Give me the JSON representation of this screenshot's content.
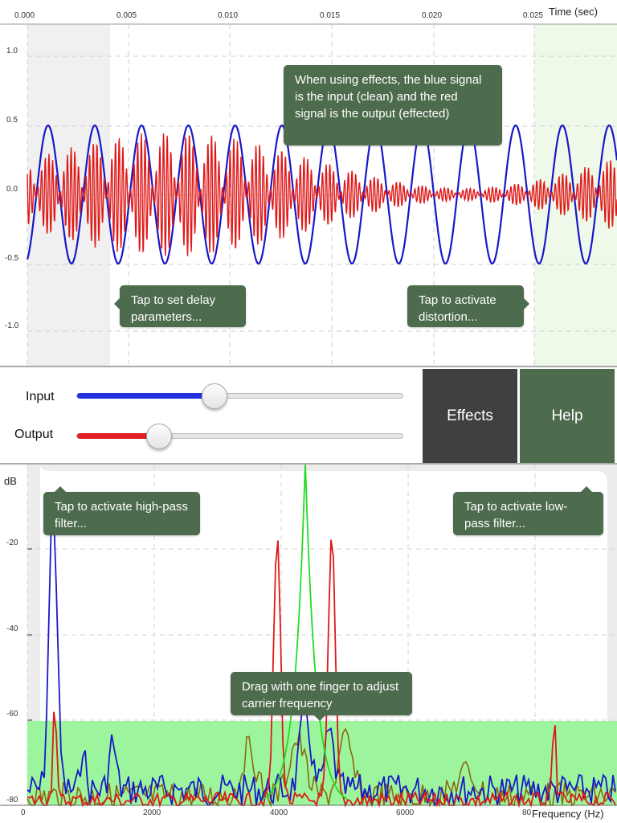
{
  "time_plot": {
    "axis_title": "Time (sec)",
    "x_ticks": [
      "0.000",
      "0.005",
      "0.010",
      "0.015",
      "0.020",
      "0.025"
    ],
    "y_ticks": [
      "1.0",
      "0.5",
      "0.0",
      "-0.5",
      "-1.0"
    ],
    "tooltips": {
      "effects": "When using effects, the blue signal is the input (clean) and the red signal is the output (effected)",
      "delay": "Tap to set delay parameters...",
      "distortion": "Tap to activate distortion..."
    }
  },
  "controls": {
    "input_label": "Input",
    "output_label": "Output",
    "input_level": 0.42,
    "output_level": 0.25,
    "effects_button": "Effects",
    "help_button": "Help",
    "input_color": "#2233dd",
    "output_color": "#e02020"
  },
  "freq_plot": {
    "y_title": "dB",
    "x_title": "Frequency (Hz)",
    "y_ticks": [
      "-20",
      "-40",
      "-60",
      "-80"
    ],
    "x_ticks": [
      "0",
      "2000",
      "4000",
      "6000",
      "80"
    ],
    "tooltips": {
      "highpass": "Tap to activate high-pass filter...",
      "lowpass": "Tap to activate low-pass filter...",
      "carrier": "Drag with one finger to adjust carrier frequency"
    }
  },
  "colors": {
    "input_signal": "#1818c8",
    "output_signal": "#e01818",
    "carrier": "#22dd22",
    "spectrum_mix": "#8a6a10",
    "tooltip_bg": "#4d6b4d",
    "effects_bg": "#404040",
    "help_bg": "#4d6b4d",
    "noise_floor": "#9cf59c"
  }
}
